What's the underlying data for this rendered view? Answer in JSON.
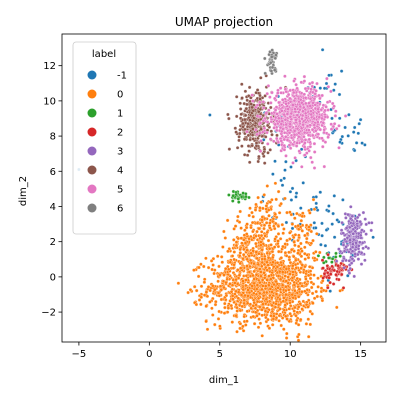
{
  "chart_data": {
    "type": "scatter",
    "title": "UMAP projection",
    "xlabel": "dim_1",
    "ylabel": "dim_2",
    "xlim": [
      -6.2,
      16.8
    ],
    "ylim": [
      -3.7,
      13.8
    ],
    "xticks": [
      -5,
      0,
      5,
      10,
      15
    ],
    "yticks": [
      -2,
      0,
      2,
      4,
      6,
      8,
      10,
      12
    ],
    "grid": false,
    "legend": {
      "title": "label",
      "placement": "top-left",
      "entries": [
        "-1",
        "0",
        "1",
        "2",
        "3",
        "4",
        "5",
        "6"
      ]
    },
    "series": [
      {
        "name": "-1",
        "color": "#1f77b4",
        "clusters": [
          {
            "cx": 9.8,
            "cy": 6.5,
            "sx": 1.2,
            "sy": 2.6,
            "n": 45
          },
          {
            "cx": 14.3,
            "cy": 8.2,
            "sx": 1.0,
            "sy": 0.6,
            "n": 22
          },
          {
            "cx": 11.6,
            "cy": 3.4,
            "sx": 0.8,
            "sy": 0.9,
            "n": 28
          },
          {
            "cx": 13.8,
            "cy": 2.0,
            "sx": 0.9,
            "sy": 1.6,
            "n": 30
          },
          {
            "cx": 12.5,
            "cy": 10.6,
            "sx": 0.8,
            "sy": 0.8,
            "n": 14
          }
        ],
        "points": [
          [
            -5.0,
            6.1
          ],
          [
            4.3,
            9.2
          ],
          [
            12.3,
            12.9
          ],
          [
            15.3,
            7.5
          ],
          [
            15.1,
            7.6
          ]
        ]
      },
      {
        "name": "0",
        "color": "#ff7f0e",
        "clusters": [
          {
            "cx": 8.0,
            "cy": -0.6,
            "sx": 1.9,
            "sy": 1.0,
            "n": 1100
          },
          {
            "cx": 7.4,
            "cy": 1.6,
            "sx": 0.9,
            "sy": 1.0,
            "n": 260
          },
          {
            "cx": 8.6,
            "cy": 3.4,
            "sx": 0.6,
            "sy": 0.8,
            "n": 70
          },
          {
            "cx": 10.9,
            "cy": 2.4,
            "sx": 0.5,
            "sy": 0.8,
            "n": 60
          },
          {
            "cx": 10.0,
            "cy": -0.2,
            "sx": 0.9,
            "sy": 1.3,
            "n": 180
          }
        ],
        "points": []
      },
      {
        "name": "1",
        "color": "#2ca02c",
        "clusters": [
          {
            "cx": 6.3,
            "cy": 4.6,
            "sx": 0.35,
            "sy": 0.15,
            "n": 35
          },
          {
            "cx": 13.0,
            "cy": 1.0,
            "sx": 0.5,
            "sy": 0.3,
            "n": 15
          }
        ],
        "points": []
      },
      {
        "name": "2",
        "color": "#d62728",
        "clusters": [
          {
            "cx": 13.2,
            "cy": 0.3,
            "sx": 0.45,
            "sy": 0.35,
            "n": 70
          }
        ],
        "points": []
      },
      {
        "name": "3",
        "color": "#9467bd",
        "clusters": [
          {
            "cx": 14.5,
            "cy": 2.2,
            "sx": 0.45,
            "sy": 0.75,
            "n": 220
          }
        ],
        "points": []
      },
      {
        "name": "4",
        "color": "#8c564b",
        "clusters": [
          {
            "cx": 7.5,
            "cy": 8.8,
            "sx": 0.6,
            "sy": 0.9,
            "n": 330
          }
        ],
        "points": []
      },
      {
        "name": "5",
        "color": "#e377c2",
        "clusters": [
          {
            "cx": 10.6,
            "cy": 9.0,
            "sx": 1.1,
            "sy": 0.8,
            "n": 900
          }
        ],
        "points": []
      },
      {
        "name": "6",
        "color": "#7f7f7f",
        "clusters": [
          {
            "cx": 8.7,
            "cy": 12.3,
            "sx": 0.2,
            "sy": 0.3,
            "n": 40
          }
        ],
        "points": []
      }
    ]
  }
}
